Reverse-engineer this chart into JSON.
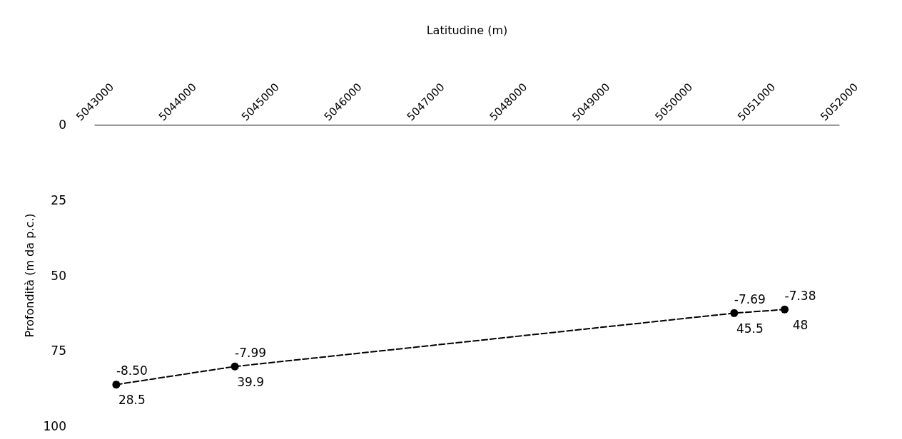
{
  "chart_data": {
    "type": "line",
    "xlabel": "Latitudine (m)",
    "ylabel": "Profondità (m da p.c.)",
    "x": [
      5043258,
      5044692,
      5050730,
      5051340
    ],
    "series": [
      {
        "color": "#000000",
        "values": [
          86.2,
          80.2,
          62.5,
          61.3
        ]
      }
    ],
    "xlim": [
      5043000,
      5052000
    ],
    "xticks": [
      5043000,
      5044000,
      5045000,
      5046000,
      5047000,
      5048000,
      5049000,
      5050000,
      5051000,
      5052000
    ],
    "ylim": [
      100,
      0
    ],
    "yticks": [
      0,
      25,
      50,
      75,
      100
    ],
    "marker": "circle",
    "line_style": "dashed",
    "grid": false,
    "annotations": [
      {
        "text": "-8.50",
        "x": 5043258,
        "y": 86.2
      },
      {
        "text": "28.5",
        "x": 5043258,
        "y": 86.2
      },
      {
        "text": "-7.99",
        "x": 5044692,
        "y": 80.2
      },
      {
        "text": "39.9",
        "x": 5044692,
        "y": 80.2
      },
      {
        "text": "-7.69",
        "x": 5050730,
        "y": 62.5
      },
      {
        "text": "45.5",
        "x": 5050730,
        "y": 62.5
      },
      {
        "text": "-7.38",
        "x": 5051340,
        "y": 61.3
      },
      {
        "text": "48",
        "x": 5051340,
        "y": 61.3
      }
    ]
  }
}
